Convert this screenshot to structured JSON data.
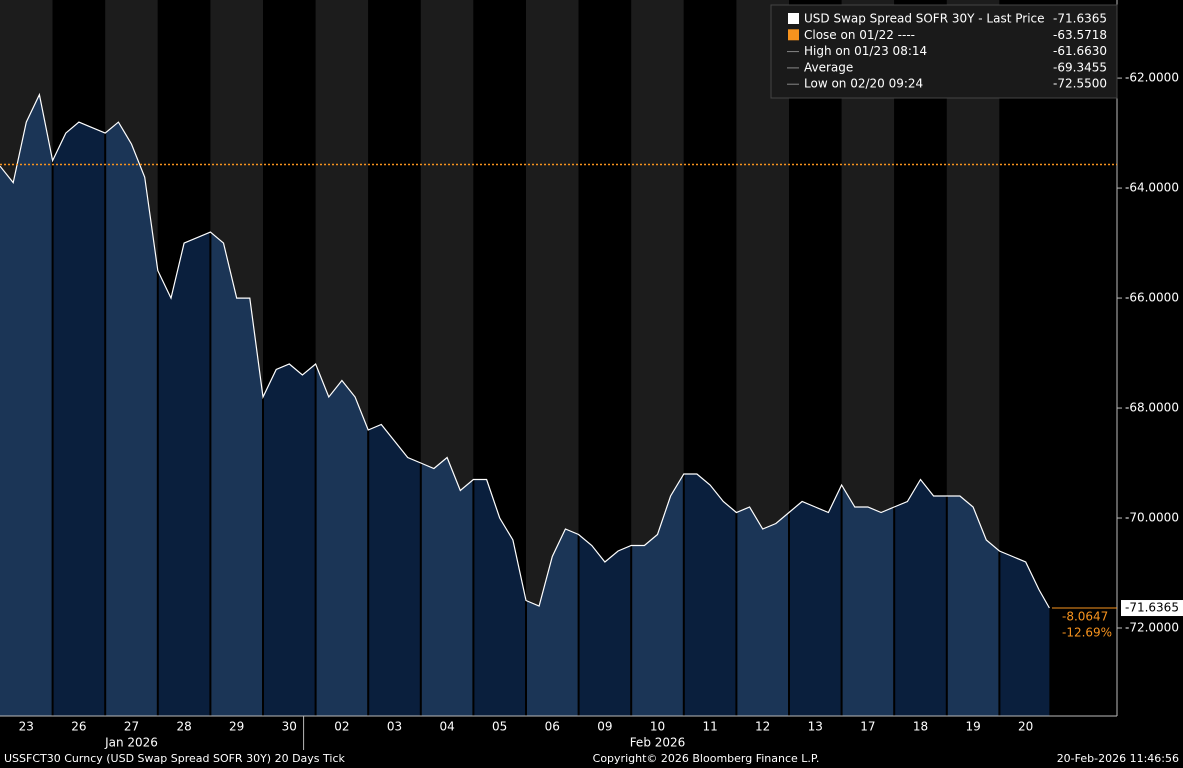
{
  "chart_data": {
    "type": "line",
    "categories": [
      "23",
      "26",
      "27",
      "28",
      "29",
      "30",
      "02",
      "03",
      "04",
      "05",
      "06",
      "09",
      "10",
      "11",
      "12",
      "13",
      "17",
      "18",
      "19",
      "20"
    ],
    "months": [
      {
        "label": "Jan 2026",
        "at": 2
      },
      {
        "label": "Feb 2026",
        "at": 12
      }
    ],
    "x": [
      0,
      0.25,
      0.5,
      0.75,
      1,
      1.25,
      1.5,
      1.75,
      2,
      2.25,
      2.5,
      2.75,
      3,
      3.25,
      3.5,
      3.75,
      4,
      4.25,
      4.5,
      4.75,
      5,
      5.25,
      5.5,
      5.75,
      6,
      6.25,
      6.5,
      6.75,
      7,
      7.25,
      7.5,
      7.75,
      8,
      8.25,
      8.5,
      8.75,
      9,
      9.25,
      9.5,
      9.75,
      10,
      10.25,
      10.5,
      10.75,
      11,
      11.25,
      11.5,
      11.75,
      12,
      12.25,
      12.5,
      12.75,
      13,
      13.25,
      13.5,
      13.75,
      14,
      14.25,
      14.5,
      14.75,
      15,
      15.25,
      15.5,
      15.75,
      16,
      16.25,
      16.5,
      16.75,
      17,
      17.25,
      17.5,
      17.75,
      18,
      18.25,
      18.5,
      18.75,
      19,
      19.25,
      19.5,
      19.75,
      19.95
    ],
    "series": [
      {
        "name": "USD Swap Spread SOFR 30Y - Last Price",
        "color": "#ffffff",
        "values": [
          -63.6,
          -63.9,
          -62.8,
          -62.3,
          -63.5,
          -63.0,
          -62.8,
          -62.9,
          -63.0,
          -62.8,
          -63.2,
          -63.8,
          -65.5,
          -66.0,
          -65.0,
          -64.9,
          -64.8,
          -65.0,
          -66.0,
          -66.0,
          -67.8,
          -67.3,
          -67.2,
          -67.4,
          -67.2,
          -67.8,
          -67.5,
          -67.8,
          -68.4,
          -68.3,
          -68.6,
          -68.9,
          -69.0,
          -69.1,
          -68.9,
          -69.5,
          -69.3,
          -69.3,
          -70.0,
          -70.4,
          -71.5,
          -71.6,
          -70.7,
          -70.2,
          -70.3,
          -70.5,
          -70.8,
          -70.6,
          -70.5,
          -70.5,
          -70.3,
          -69.6,
          -69.2,
          -69.2,
          -69.4,
          -69.7,
          -69.9,
          -69.8,
          -70.2,
          -70.1,
          -69.9,
          -69.7,
          -69.8,
          -69.9,
          -69.4,
          -69.8,
          -69.8,
          -69.9,
          -69.8,
          -69.7,
          -69.3,
          -69.6,
          -69.6,
          -69.6,
          -69.8,
          -70.4,
          -70.6,
          -70.7,
          -70.8,
          -71.3,
          -71.6365
        ]
      }
    ],
    "close_line": -63.5718,
    "close_color": "#f7931e",
    "xlim": [
      0,
      20
    ],
    "ylim": [
      -73.6,
      -60.58
    ],
    "yticks": [
      {
        "value": -62,
        "label": "-62.0000"
      },
      {
        "value": -64,
        "label": "-64.0000"
      },
      {
        "value": -66,
        "label": "-66.0000"
      },
      {
        "value": -68,
        "label": "-68.0000"
      },
      {
        "value": -70,
        "label": "-70.0000"
      },
      {
        "value": -72,
        "label": "-72.0000"
      }
    ],
    "legend": [
      {
        "name": "USD Swap Spread SOFR 30Y - Last Price",
        "value": "-71.6365"
      },
      {
        "name": "Close on 01/22 ----",
        "value": "-63.5718"
      },
      {
        "name": "High on 01/23 08:14",
        "value": "-61.6630"
      },
      {
        "name": "Average",
        "value": "-69.3455"
      },
      {
        "name": "Low on 02/20 09:24",
        "value": "-72.5500"
      }
    ],
    "annotations": {
      "last": "-71.6365",
      "change": "-8.0647",
      "change_pct": "-12.69%"
    },
    "footer": {
      "left": "USSFCT30 Curncy (USD Swap Spread SOFR 30Y) 20 Days Tick",
      "center": "Copyright© 2026 Bloomberg Finance L.P.",
      "right": "20-Feb-2026 11:46:56"
    }
  }
}
